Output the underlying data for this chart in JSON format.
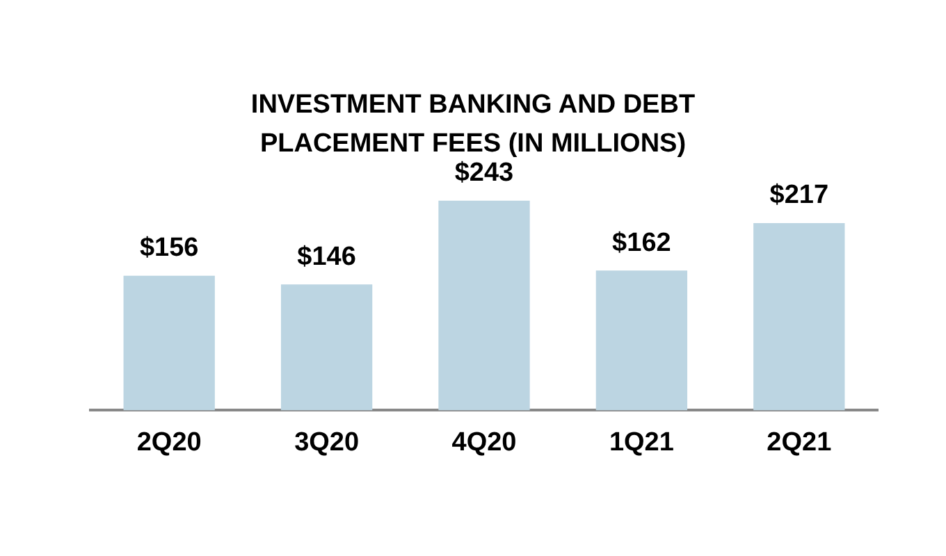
{
  "chart_data": {
    "type": "bar",
    "title": "INVESTMENT BANKING AND DEBT PLACEMENT FEES (IN MILLIONS)",
    "categories": [
      "2Q20",
      "3Q20",
      "4Q20",
      "1Q21",
      "2Q21"
    ],
    "values": [
      156,
      146,
      243,
      162,
      217
    ],
    "value_labels": [
      "$156",
      "$146",
      "$243",
      "$162",
      "$217"
    ],
    "color": "#bcd5e2"
  }
}
